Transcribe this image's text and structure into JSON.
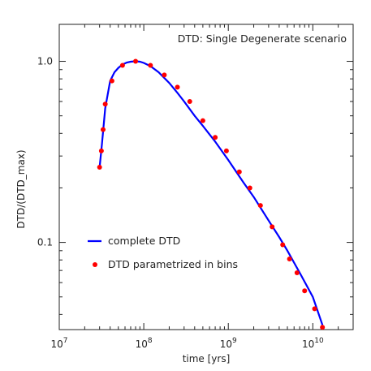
{
  "chart_data": {
    "type": "line",
    "title": "DTD: Single Degenerate scenario",
    "xlabel": "time [yrs]",
    "ylabel": "DTD/(DTD_max)",
    "xscale": "log",
    "yscale": "log",
    "xlim": [
      10000000.0,
      30000000000.0
    ],
    "ylim": [
      0.033,
      1.6
    ],
    "grid": false,
    "legend_position": "bottom-left",
    "x_ticks": [
      {
        "value": 10000000.0,
        "base": "10",
        "exp": "7"
      },
      {
        "value": 100000000.0,
        "base": "10",
        "exp": "8"
      },
      {
        "value": 1000000000.0,
        "base": "10",
        "exp": "9"
      },
      {
        "value": 10000000000.0,
        "base": "10",
        "exp": "10"
      }
    ],
    "y_ticks": [
      {
        "value": 0.1,
        "label": "0.1"
      },
      {
        "value": 1.0,
        "label": "1.0"
      }
    ],
    "series": [
      {
        "name": "complete DTD",
        "kind": "line",
        "color": "#0000ff",
        "x": [
          30000000.0,
          32000000.0,
          35000000.0,
          40000000.0,
          45000000.0,
          50000000.0,
          56000000.0,
          63000000.0,
          70000000.0,
          80000000.0,
          90000000.0,
          100000000.0,
          120000000.0,
          150000000.0,
          200000000.0,
          250000000.0,
          300000000.0,
          400000000.0,
          500000000.0,
          700000000.0,
          1000000000.0,
          1500000000.0,
          2000000000.0,
          3000000000.0,
          4000000000.0,
          5000000000.0,
          7000000000.0,
          10000000000.0,
          13000000000.0
        ],
        "y": [
          0.26,
          0.35,
          0.55,
          0.78,
          0.87,
          0.92,
          0.96,
          0.985,
          0.995,
          1.0,
          0.995,
          0.98,
          0.94,
          0.87,
          0.76,
          0.67,
          0.6,
          0.5,
          0.44,
          0.36,
          0.285,
          0.215,
          0.178,
          0.132,
          0.107,
          0.09,
          0.068,
          0.05,
          0.035
        ]
      },
      {
        "name": "DTD parametrized in bins",
        "kind": "scatter",
        "color": "#ff0000",
        "x": [
          30000000.0,
          31500000.0,
          33000000.0,
          35000000.0,
          42000000.0,
          56000000.0,
          80000000.0,
          120000000.0,
          175000000.0,
          250000000.0,
          350000000.0,
          500000000.0,
          700000000.0,
          950000000.0,
          1350000000.0,
          1800000000.0,
          2400000000.0,
          3300000000.0,
          4400000000.0,
          5300000000.0,
          6500000000.0,
          8000000000.0,
          10500000000.0,
          13000000000.0
        ],
        "y": [
          0.26,
          0.32,
          0.42,
          0.58,
          0.78,
          0.95,
          1.0,
          0.95,
          0.84,
          0.72,
          0.6,
          0.47,
          0.38,
          0.32,
          0.245,
          0.2,
          0.16,
          0.122,
          0.097,
          0.081,
          0.068,
          0.054,
          0.043,
          0.034
        ]
      }
    ]
  }
}
